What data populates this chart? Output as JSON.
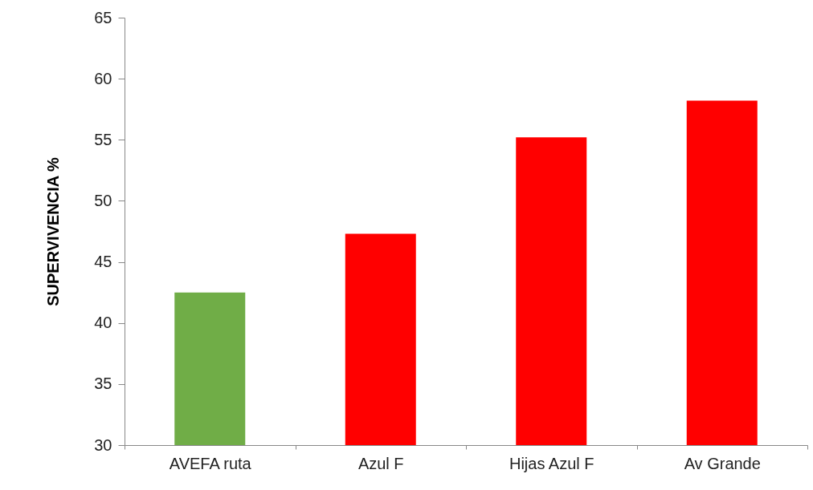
{
  "chart_data": {
    "type": "bar",
    "ylabel": "SUPERVIVENCIA %",
    "categories": [
      "AVEFA ruta",
      "Azul F",
      "Hijas Azul F",
      "Av Grande"
    ],
    "values": [
      42.5,
      47.3,
      55.2,
      58.2
    ],
    "colors": [
      "#70ad47",
      "#ff0000",
      "#ff0000",
      "#ff0000"
    ],
    "ylim": [
      30,
      65
    ],
    "yticks": [
      30,
      35,
      40,
      45,
      50,
      55,
      60,
      65
    ],
    "grid": false
  }
}
